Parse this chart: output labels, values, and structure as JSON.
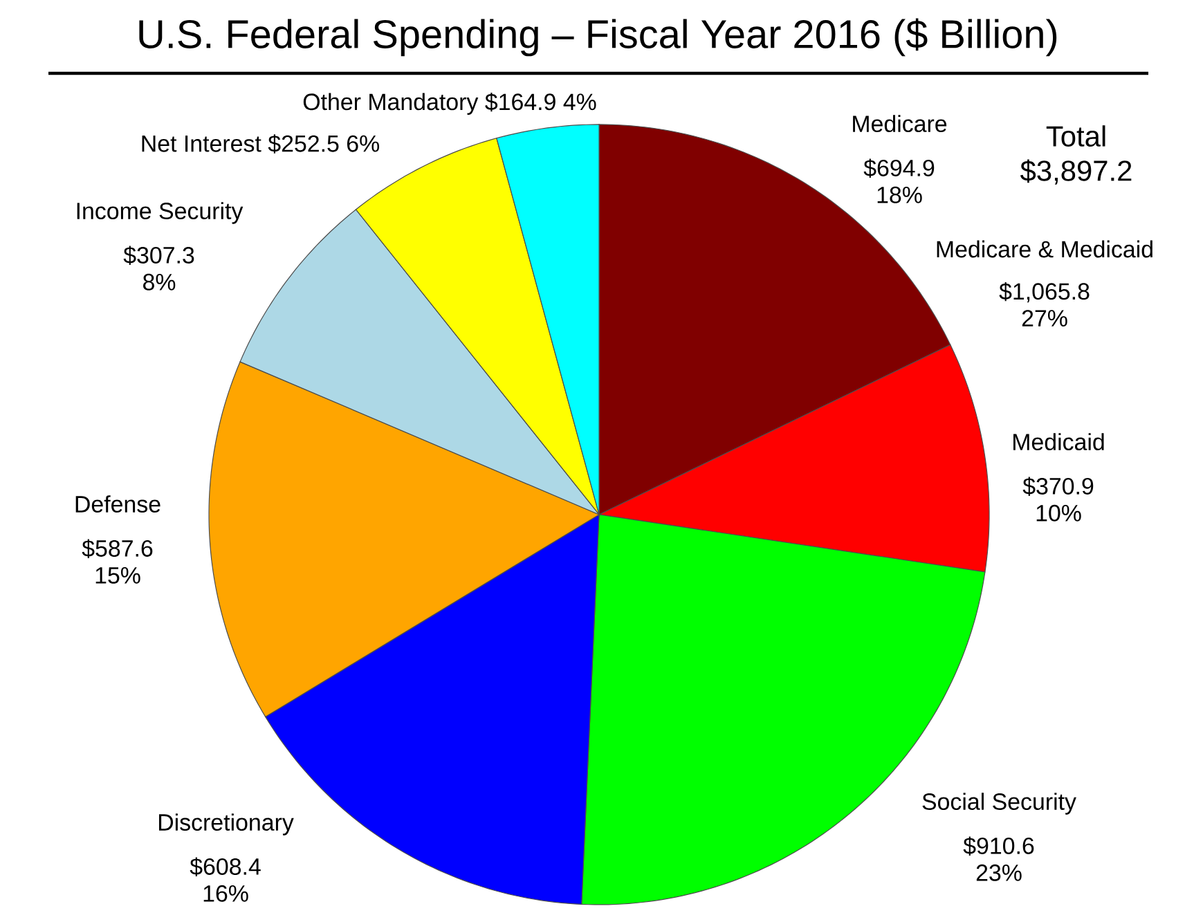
{
  "chart_data": {
    "type": "pie",
    "title": "U.S. Federal Spending – Fiscal Year 2016 ($ Billion)",
    "categories": [
      "Medicare",
      "Medicaid",
      "Social Security",
      "Discretionary",
      "Defense",
      "Income Security",
      "Net Interest",
      "Other Mandatory"
    ],
    "values": [
      694.9,
      370.9,
      910.6,
      608.4,
      587.6,
      307.3,
      252.5,
      164.9
    ],
    "colors": [
      "#800000",
      "#ff0000",
      "#00ff00",
      "#0000ff",
      "#ffa500",
      "#add8e6",
      "#ffff00",
      "#00ffff"
    ],
    "value_labels": [
      "$694.9 18%",
      "$370.9 10%",
      "$910.6 23%",
      "$608.4 16%",
      "$587.6 15%",
      "$307.3 8%",
      "$252.5 6%",
      "$164.9 4%"
    ],
    "annotations": [
      "Total $3,897.2",
      "Medicare & Medicaid",
      "$1,065.8 27%"
    ]
  }
}
